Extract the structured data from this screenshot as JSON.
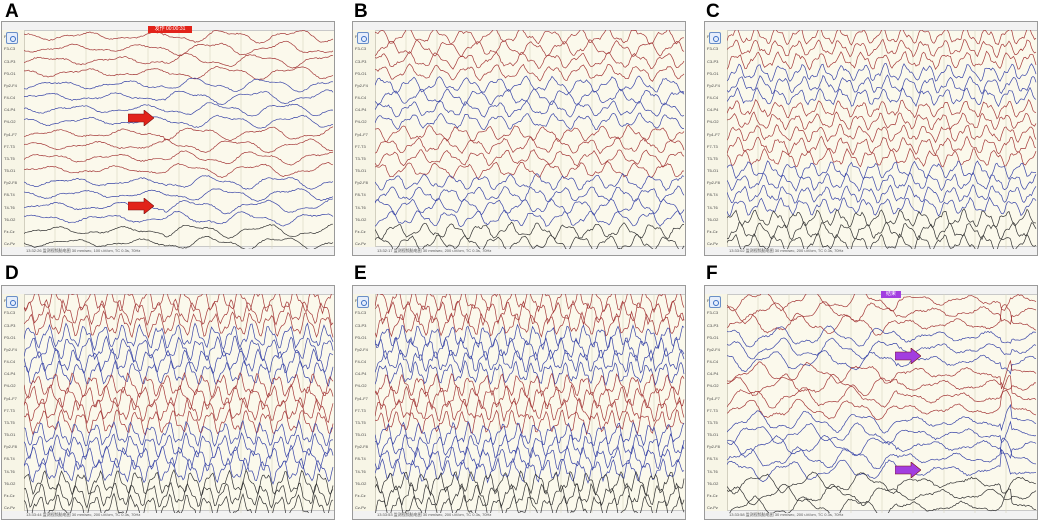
{
  "panels": [
    {
      "letter": "A",
      "marker_label": "发作 00:00:31",
      "marker_color": "#e2231a",
      "status": "13:32:26 监测视频脑电图 30 mm/sec, 100 uV/cm, TC 0.3s, 70Hz"
    },
    {
      "letter": "B",
      "marker_label": "",
      "marker_color": "",
      "status": "13:32:17 监测视频脑电图 30 mm/sec, 200 uV/cm, TC 0.3s, 70Hz"
    },
    {
      "letter": "C",
      "marker_label": "",
      "marker_color": "",
      "status": "13:33:02 监测视频脑电图 30 mm/sec, 200 uV/cm, TC 0.3s, 70Hz"
    },
    {
      "letter": "D",
      "marker_label": "",
      "marker_color": "",
      "status": "13:33:44 监测视频脑电图 30 mm/sec, 200 uV/cm, TC 0.3s, 70Hz"
    },
    {
      "letter": "E",
      "marker_label": "",
      "marker_color": "",
      "status": "13:33:53 监测视频脑电图 30 mm/sec, 200 uV/cm, TC 0.3s, 70Hz"
    },
    {
      "letter": "F",
      "marker_label": "结束",
      "marker_color": "#a23ee0",
      "status": "13:33:58 监测视频脑电图 30 mm/sec, 200 uV/cm, TC 0.3s, 70Hz"
    }
  ],
  "channel_labels": [
    "Fp1-F3",
    "F3-C3",
    "C3-P3",
    "P3-O1",
    "Fp2-F4",
    "F4-C4",
    "C4-P4",
    "P4-O2",
    "Fp1-F7",
    "F7-T3",
    "T3-T5",
    "T5-O1",
    "Fp2-F8",
    "F8-T4",
    "T4-T6",
    "T6-O2",
    "Fz-Cz",
    "Cz-Pz"
  ],
  "colors": {
    "red_trace": "#a53a3a",
    "blue_trace": "#3a46a8",
    "black_trace": "#333333",
    "arrow_red": "#e2231a",
    "arrow_purple": "#a23ee0",
    "background": "#fbf9ec"
  }
}
